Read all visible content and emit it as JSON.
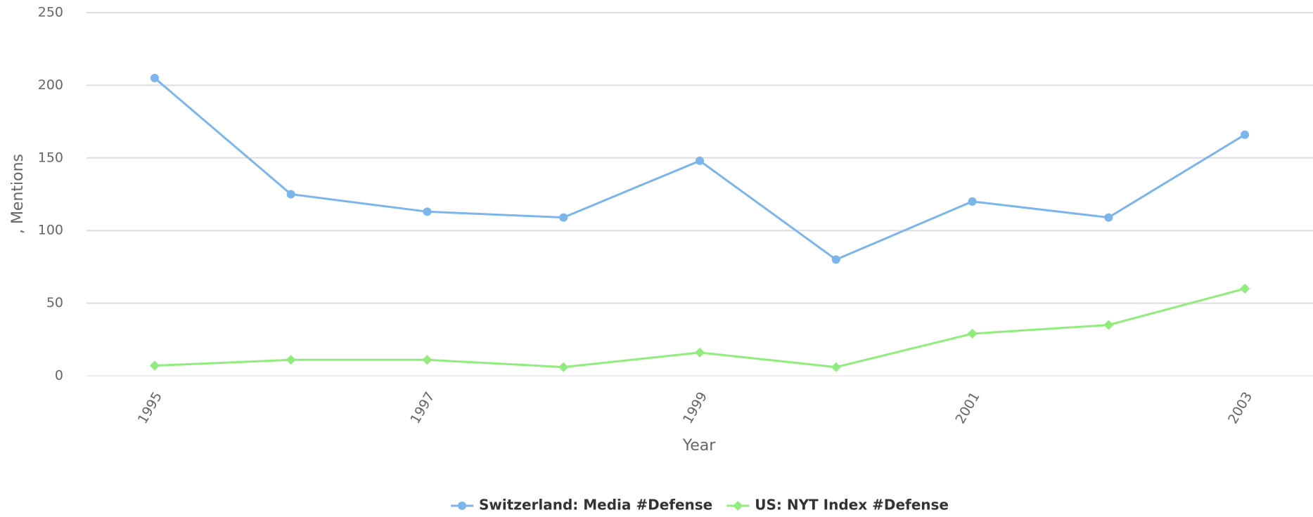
{
  "chart_data": {
    "type": "line",
    "x_label": "Year",
    "y_label": ", Mentions",
    "x": [
      1995,
      1996,
      1997,
      1998,
      1999,
      2000,
      2001,
      2002,
      2003
    ],
    "series": [
      {
        "name": "Switzerland: Media #Defense",
        "color": "#7cb5ec",
        "marker": "circle",
        "values": [
          205,
          125,
          113,
          109,
          148,
          80,
          120,
          109,
          166
        ]
      },
      {
        "name": "US: NYT Index #Defense",
        "color": "#90ed7d",
        "marker": "diamond",
        "values": [
          7,
          11,
          11,
          6,
          16,
          6,
          29,
          35,
          60
        ]
      }
    ],
    "xlim": [
      1994.5,
      2003.5
    ],
    "xticks": [
      1995,
      1997,
      1999,
      2001,
      2003
    ],
    "ylim": [
      0,
      250
    ],
    "yticks": [
      0,
      50,
      100,
      150,
      200,
      250
    ],
    "grid": true,
    "legend": "bottom"
  }
}
